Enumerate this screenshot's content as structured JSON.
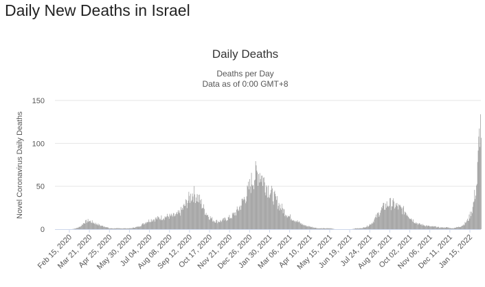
{
  "page": {
    "heading": "Daily New Deaths in Israel"
  },
  "chart_data": {
    "type": "bar",
    "title": "Daily Deaths",
    "subtitle_line1": "Deaths per Day",
    "subtitle_line2": "Data as of 0:00 GMT+8",
    "ylabel": "Novel Coronavirus Daily Deaths",
    "xlabel": "",
    "ylim": [
      0,
      150
    ],
    "yticks": [
      "0",
      "50",
      "100",
      "150"
    ],
    "grid": true,
    "bar_color": "#999999",
    "x_start": "2020-02-15",
    "x_end": "2022-01-29",
    "xtick_labels": [
      "Feb 15, 2020",
      "Mar 21, 2020",
      "Apr 25, 2020",
      "May 30, 2020",
      "Jul 04, 2020",
      "Aug 08, 2020",
      "Sep 12, 2020",
      "Oct 17, 2020",
      "Nov 21, 2020",
      "Dec 26, 2020",
      "Jan 30, 2021",
      "Mar 06, 2021",
      "Apr 10, 2021",
      "May 15, 2021",
      "Jun 19, 2021",
      "Jul 24, 2021",
      "Aug 28, 2021",
      "Oct 02, 2021",
      "Nov 06, 2021",
      "Dec 11, 2021",
      "Jan 15, 2022"
    ],
    "series_weekly": [
      {
        "week_of": "2020-02-15",
        "value": 0
      },
      {
        "week_of": "2020-02-22",
        "value": 0
      },
      {
        "week_of": "2020-02-29",
        "value": 0
      },
      {
        "week_of": "2020-03-07",
        "value": 0
      },
      {
        "week_of": "2020-03-14",
        "value": 0
      },
      {
        "week_of": "2020-03-21",
        "value": 1
      },
      {
        "week_of": "2020-03-28",
        "value": 3
      },
      {
        "week_of": "2020-04-04",
        "value": 8
      },
      {
        "week_of": "2020-04-11",
        "value": 10
      },
      {
        "week_of": "2020-04-18",
        "value": 8
      },
      {
        "week_of": "2020-04-25",
        "value": 6
      },
      {
        "week_of": "2020-05-02",
        "value": 4
      },
      {
        "week_of": "2020-05-09",
        "value": 3
      },
      {
        "week_of": "2020-05-16",
        "value": 1
      },
      {
        "week_of": "2020-05-23",
        "value": 1
      },
      {
        "week_of": "2020-05-30",
        "value": 1
      },
      {
        "week_of": "2020-06-06",
        "value": 1
      },
      {
        "week_of": "2020-06-13",
        "value": 1
      },
      {
        "week_of": "2020-06-20",
        "value": 1
      },
      {
        "week_of": "2020-06-27",
        "value": 2
      },
      {
        "week_of": "2020-07-04",
        "value": 3
      },
      {
        "week_of": "2020-07-11",
        "value": 6
      },
      {
        "week_of": "2020-07-18",
        "value": 9
      },
      {
        "week_of": "2020-07-25",
        "value": 11
      },
      {
        "week_of": "2020-08-01",
        "value": 12
      },
      {
        "week_of": "2020-08-08",
        "value": 13
      },
      {
        "week_of": "2020-08-15",
        "value": 14
      },
      {
        "week_of": "2020-08-22",
        "value": 15
      },
      {
        "week_of": "2020-08-29",
        "value": 15
      },
      {
        "week_of": "2020-09-05",
        "value": 16
      },
      {
        "week_of": "2020-09-12",
        "value": 20
      },
      {
        "week_of": "2020-09-19",
        "value": 27
      },
      {
        "week_of": "2020-09-26",
        "value": 35
      },
      {
        "week_of": "2020-10-03",
        "value": 42
      },
      {
        "week_of": "2020-10-10",
        "value": 38
      },
      {
        "week_of": "2020-10-17",
        "value": 30
      },
      {
        "week_of": "2020-10-24",
        "value": 20
      },
      {
        "week_of": "2020-10-31",
        "value": 14
      },
      {
        "week_of": "2020-11-07",
        "value": 10
      },
      {
        "week_of": "2020-11-14",
        "value": 9
      },
      {
        "week_of": "2020-11-21",
        "value": 10
      },
      {
        "week_of": "2020-11-28",
        "value": 12
      },
      {
        "week_of": "2020-12-05",
        "value": 14
      },
      {
        "week_of": "2020-12-12",
        "value": 18
      },
      {
        "week_of": "2020-12-19",
        "value": 24
      },
      {
        "week_of": "2020-12-26",
        "value": 33
      },
      {
        "week_of": "2021-01-02",
        "value": 42
      },
      {
        "week_of": "2021-01-09",
        "value": 55
      },
      {
        "week_of": "2021-01-16",
        "value": 64
      },
      {
        "week_of": "2021-01-23",
        "value": 66
      },
      {
        "week_of": "2021-01-30",
        "value": 56
      },
      {
        "week_of": "2021-02-06",
        "value": 48
      },
      {
        "week_of": "2021-02-13",
        "value": 40
      },
      {
        "week_of": "2021-02-20",
        "value": 33
      },
      {
        "week_of": "2021-02-27",
        "value": 26
      },
      {
        "week_of": "2021-03-06",
        "value": 20
      },
      {
        "week_of": "2021-03-13",
        "value": 15
      },
      {
        "week_of": "2021-03-20",
        "value": 12
      },
      {
        "week_of": "2021-03-27",
        "value": 9
      },
      {
        "week_of": "2021-04-03",
        "value": 6
      },
      {
        "week_of": "2021-04-10",
        "value": 4
      },
      {
        "week_of": "2021-04-17",
        "value": 3
      },
      {
        "week_of": "2021-04-24",
        "value": 2
      },
      {
        "week_of": "2021-05-01",
        "value": 1
      },
      {
        "week_of": "2021-05-08",
        "value": 1
      },
      {
        "week_of": "2021-05-15",
        "value": 1
      },
      {
        "week_of": "2021-05-22",
        "value": 1
      },
      {
        "week_of": "2021-05-29",
        "value": 0
      },
      {
        "week_of": "2021-06-05",
        "value": 0
      },
      {
        "week_of": "2021-06-12",
        "value": 0
      },
      {
        "week_of": "2021-06-19",
        "value": 0
      },
      {
        "week_of": "2021-06-26",
        "value": 0
      },
      {
        "week_of": "2021-07-03",
        "value": 1
      },
      {
        "week_of": "2021-07-10",
        "value": 1
      },
      {
        "week_of": "2021-07-17",
        "value": 2
      },
      {
        "week_of": "2021-07-24",
        "value": 4
      },
      {
        "week_of": "2021-07-31",
        "value": 8
      },
      {
        "week_of": "2021-08-07",
        "value": 15
      },
      {
        "week_of": "2021-08-14",
        "value": 22
      },
      {
        "week_of": "2021-08-21",
        "value": 27
      },
      {
        "week_of": "2021-08-28",
        "value": 30
      },
      {
        "week_of": "2021-09-04",
        "value": 29
      },
      {
        "week_of": "2021-09-11",
        "value": 26
      },
      {
        "week_of": "2021-09-18",
        "value": 23
      },
      {
        "week_of": "2021-09-25",
        "value": 20
      },
      {
        "week_of": "2021-10-02",
        "value": 14
      },
      {
        "week_of": "2021-10-09",
        "value": 9
      },
      {
        "week_of": "2021-10-16",
        "value": 6
      },
      {
        "week_of": "2021-10-23",
        "value": 5
      },
      {
        "week_of": "2021-10-30",
        "value": 4
      },
      {
        "week_of": "2021-11-06",
        "value": 3
      },
      {
        "week_of": "2021-11-13",
        "value": 3
      },
      {
        "week_of": "2021-11-20",
        "value": 2
      },
      {
        "week_of": "2021-11-27",
        "value": 2
      },
      {
        "week_of": "2021-12-04",
        "value": 2
      },
      {
        "week_of": "2021-12-11",
        "value": 1
      },
      {
        "week_of": "2021-12-18",
        "value": 2
      },
      {
        "week_of": "2021-12-25",
        "value": 3
      },
      {
        "week_of": "2022-01-01",
        "value": 6
      },
      {
        "week_of": "2022-01-08",
        "value": 12
      },
      {
        "week_of": "2022-01-15",
        "value": 25
      },
      {
        "week_of": "2022-01-22",
        "value": 55
      },
      {
        "week_of": "2022-01-27",
        "value": 120
      }
    ]
  }
}
